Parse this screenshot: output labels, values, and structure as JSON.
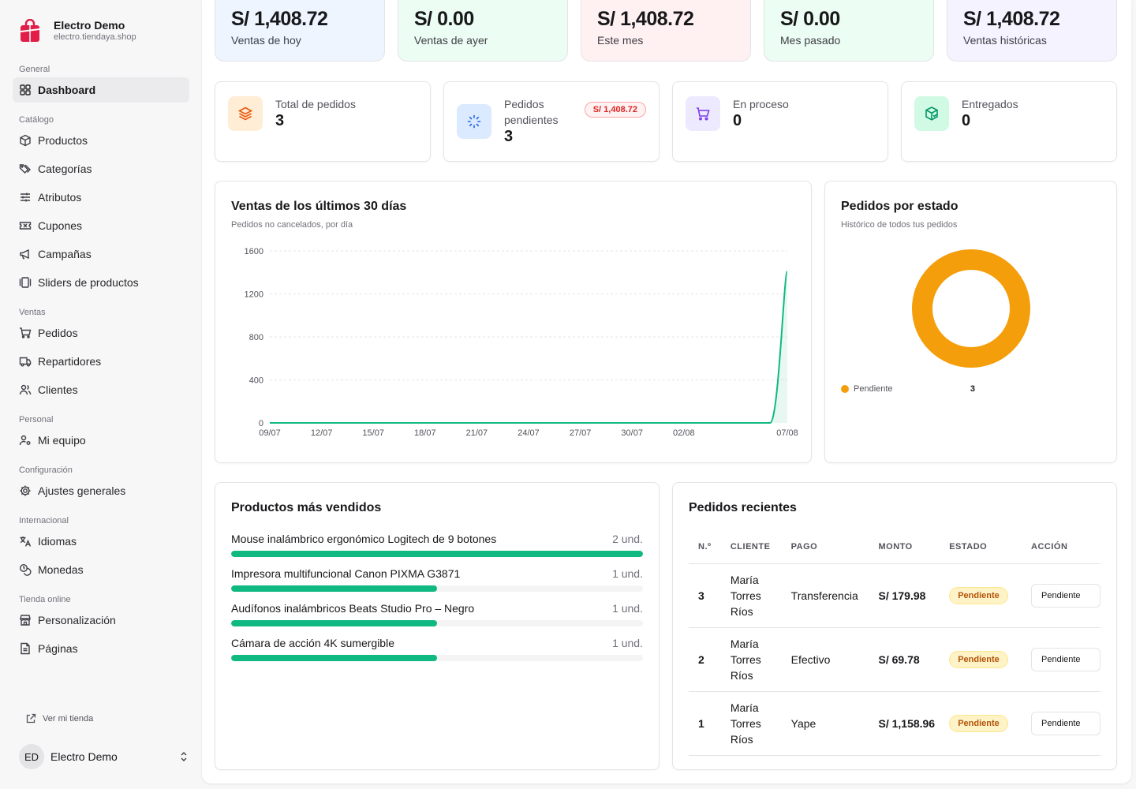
{
  "brand": {
    "name": "Electro Demo",
    "url": "electro.tiendaya.shop"
  },
  "nav": {
    "sections": [
      {
        "title": "General",
        "items": [
          {
            "label": "Dashboard",
            "icon": "layout-grid-icon",
            "active": true
          }
        ]
      },
      {
        "title": "Catálogo",
        "items": [
          {
            "label": "Productos",
            "icon": "package-icon"
          },
          {
            "label": "Categorías",
            "icon": "tags-icon"
          },
          {
            "label": "Atributos",
            "icon": "sliders-icon"
          },
          {
            "label": "Cupones",
            "icon": "ticket-icon"
          },
          {
            "label": "Campañas",
            "icon": "megaphone-icon"
          },
          {
            "label": "Sliders de productos",
            "icon": "gallery-icon"
          }
        ]
      },
      {
        "title": "Ventas",
        "items": [
          {
            "label": "Pedidos",
            "icon": "cart-icon"
          },
          {
            "label": "Repartidores",
            "icon": "truck-icon"
          },
          {
            "label": "Clientes",
            "icon": "users-icon"
          }
        ]
      },
      {
        "title": "Personal",
        "items": [
          {
            "label": "Mi equipo",
            "icon": "user-cog-icon"
          }
        ]
      },
      {
        "title": "Configuración",
        "items": [
          {
            "label": "Ajustes generales",
            "icon": "gear-icon"
          }
        ]
      },
      {
        "title": "Internacional",
        "items": [
          {
            "label": "Idiomas",
            "icon": "languages-icon"
          },
          {
            "label": "Monedas",
            "icon": "coins-icon"
          }
        ]
      },
      {
        "title": "Tienda online",
        "items": [
          {
            "label": "Personalización",
            "icon": "store-icon"
          },
          {
            "label": "Páginas",
            "icon": "file-icon"
          }
        ]
      }
    ],
    "view_store": "Ver mi tienda"
  },
  "user": {
    "initials": "ED",
    "name": "Electro Demo"
  },
  "sales_cards": [
    {
      "value": "S/ 1,408.72",
      "label": "Ventas de hoy",
      "bg": "#eef5ff"
    },
    {
      "value": "S/ 0.00",
      "label": "Ventas de ayer",
      "bg": "#ecfdf3"
    },
    {
      "value": "S/ 1,408.72",
      "label": "Este mes",
      "bg": "#fff1f2"
    },
    {
      "value": "S/ 0.00",
      "label": "Mes pasado",
      "bg": "#ecfdf3"
    },
    {
      "value": "S/ 1,408.72",
      "label": "Ventas históricas",
      "bg": "#f5f3ff"
    }
  ],
  "stats": [
    {
      "label": "Total de pedidos",
      "value": "3",
      "icon": "layers-icon",
      "icon_bg": "#ffedd5",
      "icon_color": "#ea580c"
    },
    {
      "label": "Pedidos pendientes",
      "value": "3",
      "icon": "loader-icon",
      "icon_bg": "#dbeafe",
      "icon_color": "#2563eb",
      "badge": "S/ 1,408.72"
    },
    {
      "label": "En proceso",
      "value": "0",
      "icon": "cart-icon",
      "icon_bg": "#ede9fe",
      "icon_color": "#7c3aed"
    },
    {
      "label": "Entregados",
      "value": "0",
      "icon": "package-check-icon",
      "icon_bg": "#d1fae5",
      "icon_color": "#059669"
    }
  ],
  "chart_data": [
    {
      "type": "area",
      "title": "Ventas de los últimos 30 días",
      "subtitle": "Pedidos no cancelados, por día",
      "x_ticks": [
        "09/07",
        "12/07",
        "15/07",
        "18/07",
        "21/07",
        "24/07",
        "27/07",
        "30/07",
        "02/08",
        "07/08"
      ],
      "y_ticks": [
        0,
        400,
        800,
        1200,
        1600
      ],
      "ylim": [
        0,
        1600
      ],
      "series": [
        {
          "values": [
            0,
            0,
            0,
            0,
            0,
            0,
            0,
            0,
            0,
            0,
            0,
            0,
            0,
            0,
            0,
            0,
            0,
            0,
            0,
            0,
            0,
            0,
            0,
            0,
            0,
            0,
            0,
            0,
            0,
            0,
            1408.72
          ],
          "color": "#10b981"
        }
      ],
      "grid": true
    },
    {
      "type": "pie",
      "title": "Pedidos por estado",
      "subtitle": "Histórico de todos tus pedidos",
      "slices": [
        {
          "label": "Pendiente",
          "value": 3,
          "color": "#f59e0b"
        }
      ]
    }
  ],
  "top_products": {
    "title": "Productos más vendidos",
    "items": [
      {
        "name": "Mouse inalámbrico ergonómico Logitech de 9 botones",
        "qty": "2 und.",
        "fraction": 1.0
      },
      {
        "name": "Impresora multifuncional Canon PIXMA G3871",
        "qty": "1 und.",
        "fraction": 0.5
      },
      {
        "name": "Audífonos inalámbricos Beats Studio Pro – Negro",
        "qty": "1 und.",
        "fraction": 0.5
      },
      {
        "name": "Cámara de acción 4K sumergible",
        "qty": "1 und.",
        "fraction": 0.5
      }
    ]
  },
  "recent_orders": {
    "title": "Pedidos recientes",
    "columns": [
      "N.º",
      "CLIENTE",
      "PAGO",
      "MONTO",
      "ESTADO",
      "ACCIÓN"
    ],
    "rows": [
      {
        "id": "3",
        "client": "María Torres Ríos",
        "payment": "Transferencia",
        "amount": "S/ 179.98",
        "status": "Pendiente",
        "action": "Pendiente"
      },
      {
        "id": "2",
        "client": "María Torres Ríos",
        "payment": "Efectivo",
        "amount": "S/ 69.78",
        "status": "Pendiente",
        "action": "Pendiente"
      },
      {
        "id": "1",
        "client": "María Torres Ríos",
        "payment": "Yape",
        "amount": "S/ 1,158.96",
        "status": "Pendiente",
        "action": "Pendiente"
      }
    ]
  }
}
